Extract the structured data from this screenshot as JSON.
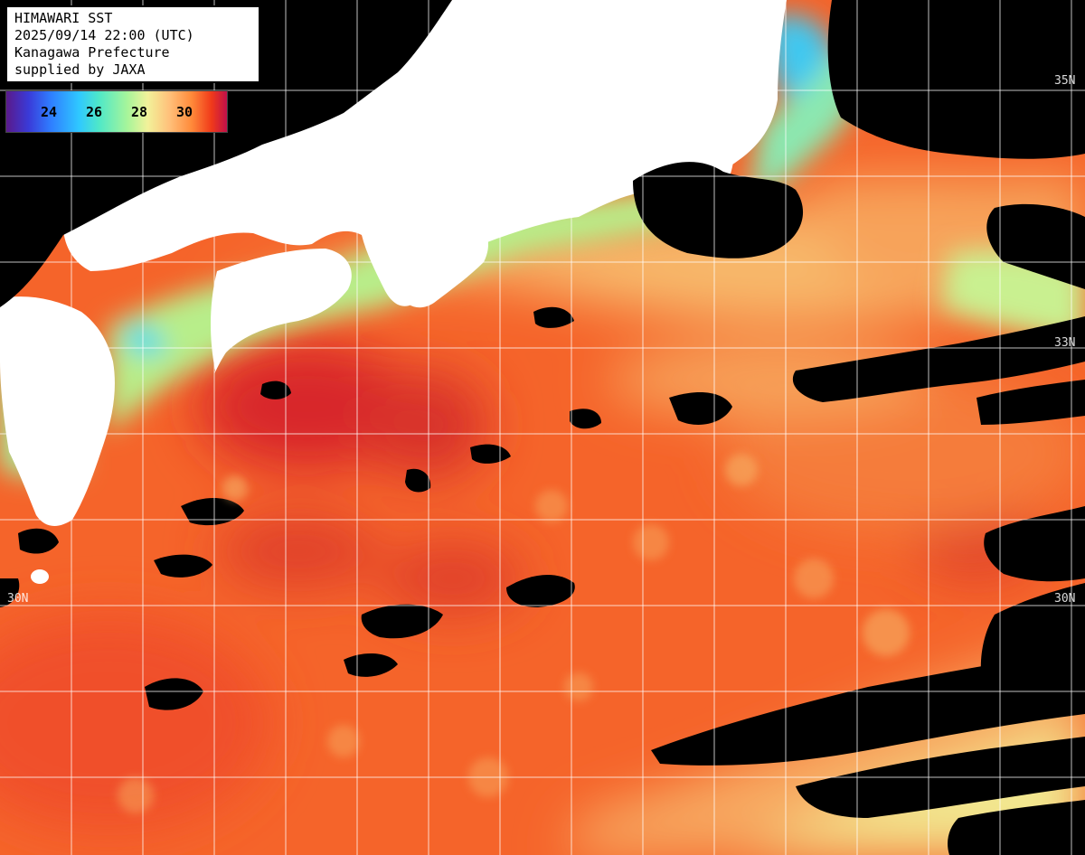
{
  "info": {
    "title": "HIMAWARI SST",
    "datetime": "2025/09/14 22:00 (UTC)",
    "agency": "Kanagawa Prefecture",
    "credit": "supplied by JAXA"
  },
  "color_scale": {
    "ticks": [
      "24",
      "26",
      "28",
      "30"
    ]
  },
  "latitude_labels": {
    "lat_35_right": "35N",
    "lat_33_right": "33N",
    "lat_30_left": "30N",
    "lat_30_right": "30N"
  },
  "colors": {
    "land": "#ffffff",
    "cloud": "#000000",
    "warm_water": "#f5642a",
    "hot_water": "#d8282a",
    "mild_water": "#f7a35a",
    "cool_water": "#c9f090",
    "cold_water": "#3fd8f0",
    "grid": "#ffffff"
  }
}
